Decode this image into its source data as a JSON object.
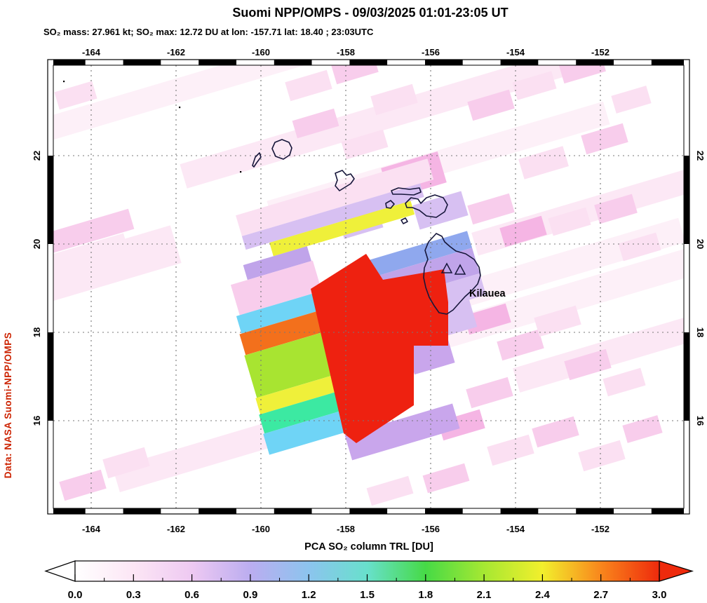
{
  "header": {
    "title": "Suomi NPP/OMPS - 09/03/2025 01:01-23:05 UT",
    "subtitle": "SO₂ mass: 27.961 kt; SO₂ max: 12.72 DU at lon: -157.71 lat: 18.40 ; 23:03UTC"
  },
  "watermark": "Data: NASA Suomi-NPP/OMPS",
  "map": {
    "lon_ticks": [
      "-164",
      "-162",
      "-160",
      "-158",
      "-156",
      "-154",
      "-152"
    ],
    "lat_ticks": [
      "22",
      "20",
      "18",
      "16"
    ],
    "volcano_label": "Kilauea"
  },
  "colorbar": {
    "label": "PCA SO₂ column TRL [DU]",
    "ticks": [
      "0.0",
      "0.3",
      "0.6",
      "0.9",
      "1.2",
      "1.5",
      "1.8",
      "2.1",
      "2.4",
      "2.7",
      "3.0"
    ],
    "stop_colors": [
      "#ffffff",
      "#fce6f5",
      "#eec9f2",
      "#bbadf0",
      "#8cc4ee",
      "#68e0cc",
      "#46da46",
      "#a6e832",
      "#f2ef2c",
      "#f9861c",
      "#ee2a0c"
    ]
  },
  "colors": {
    "red": "#ee2110",
    "orange": "#f3701c",
    "yellow": "#eff03a",
    "yellow_green": "#a8e431",
    "spring_green": "#3ce9a2",
    "cyan": "#6fd4f6",
    "blue": "#8fa8ee",
    "lavender": "#c0a4ea",
    "lavender_light": "#d7c0f2",
    "purple": "#c9a6ec",
    "pink_faint": "#fdf0f8",
    "pink_faint2": "#fce8f5",
    "pink_light": "#fbe0f2",
    "pink_med": "#f8cdec",
    "pink_strong": "#f5b5e4",
    "magenta_soft": "#f2a2dc",
    "island_outline": "#16163a",
    "grid": "#777777",
    "watermark_red": "#cc2200"
  },
  "chart_data": {
    "type": "heatmap",
    "title": "Suomi NPP/OMPS - 09/03/2025 01:01-23:05 UT",
    "subtitle_stats": {
      "so2_mass_kt": 27.961,
      "so2_max_du": 12.72,
      "so2_max_lon": -157.71,
      "so2_max_lat": 18.4,
      "so2_max_time": "23:03UTC"
    },
    "x_ticks": [
      -164,
      -162,
      -160,
      -158,
      -156,
      -154,
      -152
    ],
    "y_ticks": [
      22,
      20,
      18,
      16
    ],
    "xlim": [
      -165.0,
      -149.9
    ],
    "ylim": [
      13.9,
      24.2
    ],
    "grid": true,
    "grid_style": "dashed",
    "colorbar": {
      "label": "PCA SO₂ column TRL [DU]",
      "min": 0.0,
      "max": 3.0,
      "tick_interval": 0.3,
      "over_arrow_color": "#ee2a0c",
      "under_arrow_color": "#ffffff"
    },
    "annotations": [
      {
        "label": "Kilauea",
        "lon": -155.2,
        "lat": 19.1,
        "markers": "two open triangles on Hawaii island"
      }
    ],
    "features": [
      "Hawaiian island coastline outlines from Niihau to the Big Island",
      "Dense SO2 plume southwest of the Big Island with saturated red cells (> 3 DU) centered near lon -157.5, lat 17.5",
      "Diagonal striped swath rows of cyan, orange, yellow-green, yellow and spring-green trailing to the southwest",
      "Blue and lavender moderate-value cells over and northeast of the Big Island",
      "Scattered faint pink low-value swath pixels across the background"
    ]
  }
}
